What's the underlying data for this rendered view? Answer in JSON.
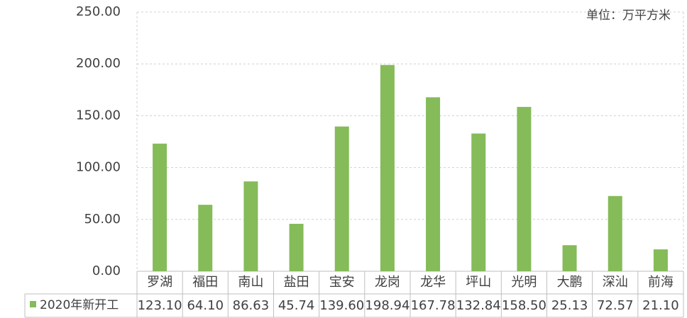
{
  "chart_data": {
    "type": "bar",
    "annotation": "单位：万平方米",
    "categories": [
      "罗湖",
      "福田",
      "南山",
      "盐田",
      "宝安",
      "龙岗",
      "龙华",
      "坪山",
      "光明",
      "大鹏",
      "深汕",
      "前海"
    ],
    "series": [
      {
        "name": "2020年新开工",
        "color": "#85bb59",
        "values": [
          123.1,
          64.1,
          86.63,
          45.74,
          139.6,
          198.94,
          167.78,
          132.84,
          158.5,
          25.13,
          72.57,
          21.1
        ],
        "value_labels": [
          "123.10",
          "64.10",
          "86.63",
          "45.74",
          "139.60",
          "198.94",
          "167.78",
          "132.84",
          "158.50",
          "25.13",
          "72.57",
          "21.10"
        ]
      }
    ],
    "ylim": [
      0,
      250
    ],
    "yticks": [
      {
        "value": 0,
        "label": "0.00"
      },
      {
        "value": 50,
        "label": "50.00"
      },
      {
        "value": 100,
        "label": "100.00"
      },
      {
        "value": 150,
        "label": "150.00"
      },
      {
        "value": 200,
        "label": "200.00"
      },
      {
        "value": 250,
        "label": "250.00"
      }
    ],
    "grid": true
  }
}
